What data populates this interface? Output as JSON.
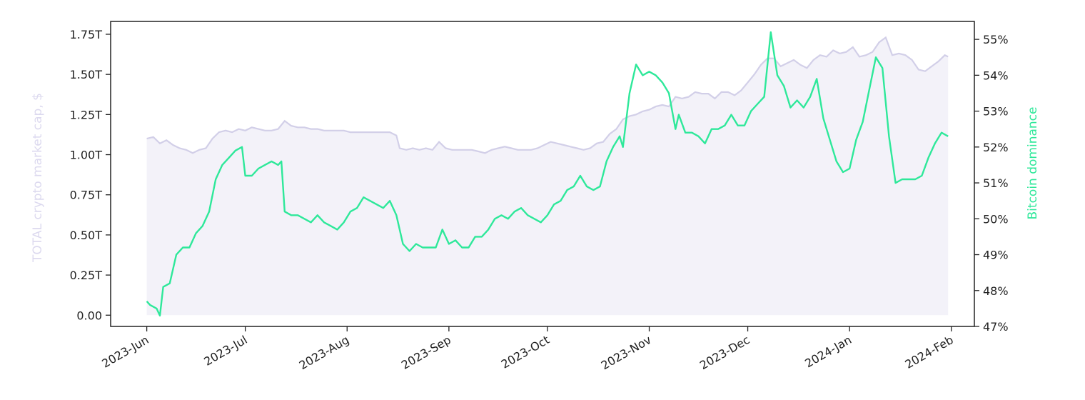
{
  "chart_data": {
    "type": "line",
    "x_axis": {
      "type": "date",
      "ticks": [
        {
          "label": "2023-Jun",
          "date": "2023-06-01"
        },
        {
          "label": "2023-Jul",
          "date": "2023-07-01"
        },
        {
          "label": "2023-Aug",
          "date": "2023-08-01"
        },
        {
          "label": "2023-Sep",
          "date": "2023-09-01"
        },
        {
          "label": "2023-Oct",
          "date": "2023-10-01"
        },
        {
          "label": "2023-Nov",
          "date": "2023-11-01"
        },
        {
          "label": "2023-Dec",
          "date": "2023-12-01"
        },
        {
          "label": "2024-Jan",
          "date": "2024-01-01"
        },
        {
          "label": "2024-Feb",
          "date": "2024-02-01"
        }
      ],
      "range": [
        "2023-05-21",
        "2024-02-08"
      ]
    },
    "y_left": {
      "label": "TOTAL crypto market cap, $",
      "color": "#dcd9ef",
      "range": [
        -0.07,
        1.83
      ],
      "ticks": [
        {
          "label": "0.00",
          "value": 0.0
        },
        {
          "label": "0.25T",
          "value": 0.25
        },
        {
          "label": "0.50T",
          "value": 0.5
        },
        {
          "label": "0.75T",
          "value": 0.75
        },
        {
          "label": "1.00T",
          "value": 1.0
        },
        {
          "label": "1.25T",
          "value": 1.25
        },
        {
          "label": "1.50T",
          "value": 1.5
        },
        {
          "label": "1.75T",
          "value": 1.75
        }
      ]
    },
    "y_right": {
      "label": "Bitcoin dominance",
      "color": "#2ee89a",
      "range": [
        47.0,
        55.5
      ],
      "ticks": [
        {
          "label": "47%",
          "value": 47
        },
        {
          "label": "48%",
          "value": 48
        },
        {
          "label": "49%",
          "value": 49
        },
        {
          "label": "50%",
          "value": 50
        },
        {
          "label": "51%",
          "value": 51
        },
        {
          "label": "52%",
          "value": 52
        },
        {
          "label": "53%",
          "value": 53
        },
        {
          "label": "54%",
          "value": 54
        },
        {
          "label": "55%",
          "value": 55
        }
      ]
    },
    "series": [
      {
        "axis": "left",
        "style": "area",
        "color": "#d2cfe8",
        "fill": "#f3f2f9",
        "points": [
          [
            "2023-06-01",
            1.1
          ],
          [
            "2023-06-03",
            1.11
          ],
          [
            "2023-06-05",
            1.07
          ],
          [
            "2023-06-07",
            1.09
          ],
          [
            "2023-06-09",
            1.06
          ],
          [
            "2023-06-11",
            1.04
          ],
          [
            "2023-06-13",
            1.03
          ],
          [
            "2023-06-15",
            1.01
          ],
          [
            "2023-06-17",
            1.03
          ],
          [
            "2023-06-19",
            1.04
          ],
          [
            "2023-06-21",
            1.1
          ],
          [
            "2023-06-23",
            1.14
          ],
          [
            "2023-06-25",
            1.15
          ],
          [
            "2023-06-27",
            1.14
          ],
          [
            "2023-06-29",
            1.16
          ],
          [
            "2023-07-01",
            1.15
          ],
          [
            "2023-07-03",
            1.17
          ],
          [
            "2023-07-05",
            1.16
          ],
          [
            "2023-07-07",
            1.15
          ],
          [
            "2023-07-09",
            1.15
          ],
          [
            "2023-07-11",
            1.16
          ],
          [
            "2023-07-13",
            1.21
          ],
          [
            "2023-07-15",
            1.18
          ],
          [
            "2023-07-17",
            1.17
          ],
          [
            "2023-07-19",
            1.17
          ],
          [
            "2023-07-21",
            1.16
          ],
          [
            "2023-07-23",
            1.16
          ],
          [
            "2023-07-25",
            1.15
          ],
          [
            "2023-07-27",
            1.15
          ],
          [
            "2023-07-29",
            1.15
          ],
          [
            "2023-07-31",
            1.15
          ],
          [
            "2023-08-02",
            1.14
          ],
          [
            "2023-08-04",
            1.14
          ],
          [
            "2023-08-06",
            1.14
          ],
          [
            "2023-08-08",
            1.14
          ],
          [
            "2023-08-10",
            1.14
          ],
          [
            "2023-08-12",
            1.14
          ],
          [
            "2023-08-14",
            1.14
          ],
          [
            "2023-08-16",
            1.12
          ],
          [
            "2023-08-17",
            1.04
          ],
          [
            "2023-08-19",
            1.03
          ],
          [
            "2023-08-21",
            1.04
          ],
          [
            "2023-08-23",
            1.03
          ],
          [
            "2023-08-25",
            1.04
          ],
          [
            "2023-08-27",
            1.03
          ],
          [
            "2023-08-29",
            1.08
          ],
          [
            "2023-08-31",
            1.04
          ],
          [
            "2023-09-02",
            1.03
          ],
          [
            "2023-09-04",
            1.03
          ],
          [
            "2023-09-06",
            1.03
          ],
          [
            "2023-09-08",
            1.03
          ],
          [
            "2023-09-10",
            1.02
          ],
          [
            "2023-09-12",
            1.01
          ],
          [
            "2023-09-14",
            1.03
          ],
          [
            "2023-09-16",
            1.04
          ],
          [
            "2023-09-18",
            1.05
          ],
          [
            "2023-09-20",
            1.04
          ],
          [
            "2023-09-22",
            1.03
          ],
          [
            "2023-09-24",
            1.03
          ],
          [
            "2023-09-26",
            1.03
          ],
          [
            "2023-09-28",
            1.04
          ],
          [
            "2023-09-30",
            1.06
          ],
          [
            "2023-10-02",
            1.08
          ],
          [
            "2023-10-04",
            1.07
          ],
          [
            "2023-10-06",
            1.06
          ],
          [
            "2023-10-08",
            1.05
          ],
          [
            "2023-10-10",
            1.04
          ],
          [
            "2023-10-12",
            1.03
          ],
          [
            "2023-10-14",
            1.04
          ],
          [
            "2023-10-16",
            1.07
          ],
          [
            "2023-10-18",
            1.08
          ],
          [
            "2023-10-20",
            1.13
          ],
          [
            "2023-10-22",
            1.16
          ],
          [
            "2023-10-24",
            1.22
          ],
          [
            "2023-10-26",
            1.24
          ],
          [
            "2023-10-28",
            1.25
          ],
          [
            "2023-10-30",
            1.27
          ],
          [
            "2023-11-01",
            1.28
          ],
          [
            "2023-11-03",
            1.3
          ],
          [
            "2023-11-05",
            1.31
          ],
          [
            "2023-11-07",
            1.3
          ],
          [
            "2023-11-09",
            1.36
          ],
          [
            "2023-11-11",
            1.35
          ],
          [
            "2023-11-13",
            1.36
          ],
          [
            "2023-11-15",
            1.39
          ],
          [
            "2023-11-17",
            1.38
          ],
          [
            "2023-11-19",
            1.38
          ],
          [
            "2023-11-21",
            1.35
          ],
          [
            "2023-11-23",
            1.39
          ],
          [
            "2023-11-25",
            1.39
          ],
          [
            "2023-11-27",
            1.37
          ],
          [
            "2023-11-29",
            1.4
          ],
          [
            "2023-12-01",
            1.45
          ],
          [
            "2023-12-03",
            1.5
          ],
          [
            "2023-12-05",
            1.56
          ],
          [
            "2023-12-07",
            1.6
          ],
          [
            "2023-12-09",
            1.6
          ],
          [
            "2023-12-11",
            1.55
          ],
          [
            "2023-12-13",
            1.57
          ],
          [
            "2023-12-15",
            1.59
          ],
          [
            "2023-12-17",
            1.56
          ],
          [
            "2023-12-19",
            1.54
          ],
          [
            "2023-12-21",
            1.59
          ],
          [
            "2023-12-23",
            1.62
          ],
          [
            "2023-12-25",
            1.61
          ],
          [
            "2023-12-27",
            1.65
          ],
          [
            "2023-12-29",
            1.63
          ],
          [
            "2023-12-31",
            1.64
          ],
          [
            "2024-01-02",
            1.67
          ],
          [
            "2024-01-04",
            1.61
          ],
          [
            "2024-01-06",
            1.62
          ],
          [
            "2024-01-08",
            1.64
          ],
          [
            "2024-01-10",
            1.7
          ],
          [
            "2024-01-12",
            1.73
          ],
          [
            "2024-01-14",
            1.62
          ],
          [
            "2024-01-16",
            1.63
          ],
          [
            "2024-01-18",
            1.62
          ],
          [
            "2024-01-20",
            1.59
          ],
          [
            "2024-01-22",
            1.53
          ],
          [
            "2024-01-24",
            1.52
          ],
          [
            "2024-01-26",
            1.55
          ],
          [
            "2024-01-28",
            1.58
          ],
          [
            "2024-01-30",
            1.62
          ],
          [
            "2024-01-31",
            1.61
          ]
        ]
      },
      {
        "axis": "right",
        "style": "line",
        "color": "#2ee89a",
        "points": [
          [
            "2023-06-01",
            47.7
          ],
          [
            "2023-06-02",
            47.6
          ],
          [
            "2023-06-04",
            47.5
          ],
          [
            "2023-06-05",
            47.3
          ],
          [
            "2023-06-06",
            48.1
          ],
          [
            "2023-06-08",
            48.2
          ],
          [
            "2023-06-10",
            49.0
          ],
          [
            "2023-06-12",
            49.2
          ],
          [
            "2023-06-14",
            49.2
          ],
          [
            "2023-06-16",
            49.6
          ],
          [
            "2023-06-18",
            49.8
          ],
          [
            "2023-06-20",
            50.2
          ],
          [
            "2023-06-22",
            51.1
          ],
          [
            "2023-06-24",
            51.5
          ],
          [
            "2023-06-26",
            51.7
          ],
          [
            "2023-06-28",
            51.9
          ],
          [
            "2023-06-30",
            52.0
          ],
          [
            "2023-07-01",
            51.2
          ],
          [
            "2023-07-03",
            51.2
          ],
          [
            "2023-07-05",
            51.4
          ],
          [
            "2023-07-07",
            51.5
          ],
          [
            "2023-07-09",
            51.6
          ],
          [
            "2023-07-11",
            51.5
          ],
          [
            "2023-07-12",
            51.6
          ],
          [
            "2023-07-13",
            50.2
          ],
          [
            "2023-07-15",
            50.1
          ],
          [
            "2023-07-17",
            50.1
          ],
          [
            "2023-07-19",
            50.0
          ],
          [
            "2023-07-21",
            49.9
          ],
          [
            "2023-07-23",
            50.1
          ],
          [
            "2023-07-25",
            49.9
          ],
          [
            "2023-07-27",
            49.8
          ],
          [
            "2023-07-29",
            49.7
          ],
          [
            "2023-07-31",
            49.9
          ],
          [
            "2023-08-02",
            50.2
          ],
          [
            "2023-08-04",
            50.3
          ],
          [
            "2023-08-06",
            50.6
          ],
          [
            "2023-08-08",
            50.5
          ],
          [
            "2023-08-10",
            50.4
          ],
          [
            "2023-08-12",
            50.3
          ],
          [
            "2023-08-14",
            50.5
          ],
          [
            "2023-08-16",
            50.1
          ],
          [
            "2023-08-18",
            49.3
          ],
          [
            "2023-08-20",
            49.1
          ],
          [
            "2023-08-22",
            49.3
          ],
          [
            "2023-08-24",
            49.2
          ],
          [
            "2023-08-26",
            49.2
          ],
          [
            "2023-08-28",
            49.2
          ],
          [
            "2023-08-30",
            49.7
          ],
          [
            "2023-09-01",
            49.3
          ],
          [
            "2023-09-03",
            49.4
          ],
          [
            "2023-09-05",
            49.2
          ],
          [
            "2023-09-07",
            49.2
          ],
          [
            "2023-09-09",
            49.5
          ],
          [
            "2023-09-11",
            49.5
          ],
          [
            "2023-09-13",
            49.7
          ],
          [
            "2023-09-15",
            50.0
          ],
          [
            "2023-09-17",
            50.1
          ],
          [
            "2023-09-19",
            50.0
          ],
          [
            "2023-09-21",
            50.2
          ],
          [
            "2023-09-23",
            50.3
          ],
          [
            "2023-09-25",
            50.1
          ],
          [
            "2023-09-27",
            50.0
          ],
          [
            "2023-09-29",
            49.9
          ],
          [
            "2023-10-01",
            50.1
          ],
          [
            "2023-10-03",
            50.4
          ],
          [
            "2023-10-05",
            50.5
          ],
          [
            "2023-10-07",
            50.8
          ],
          [
            "2023-10-09",
            50.9
          ],
          [
            "2023-10-11",
            51.2
          ],
          [
            "2023-10-13",
            50.9
          ],
          [
            "2023-10-15",
            50.8
          ],
          [
            "2023-10-17",
            50.9
          ],
          [
            "2023-10-19",
            51.6
          ],
          [
            "2023-10-21",
            52.0
          ],
          [
            "2023-10-23",
            52.3
          ],
          [
            "2023-10-24",
            52.0
          ],
          [
            "2023-10-26",
            53.5
          ],
          [
            "2023-10-28",
            54.3
          ],
          [
            "2023-10-30",
            54.0
          ],
          [
            "2023-11-01",
            54.1
          ],
          [
            "2023-11-03",
            54.0
          ],
          [
            "2023-11-05",
            53.8
          ],
          [
            "2023-11-07",
            53.5
          ],
          [
            "2023-11-09",
            52.5
          ],
          [
            "2023-11-10",
            52.9
          ],
          [
            "2023-11-12",
            52.4
          ],
          [
            "2023-11-14",
            52.4
          ],
          [
            "2023-11-16",
            52.3
          ],
          [
            "2023-11-18",
            52.1
          ],
          [
            "2023-11-20",
            52.5
          ],
          [
            "2023-11-22",
            52.5
          ],
          [
            "2023-11-24",
            52.6
          ],
          [
            "2023-11-26",
            52.9
          ],
          [
            "2023-11-28",
            52.6
          ],
          [
            "2023-11-30",
            52.6
          ],
          [
            "2023-12-02",
            53.0
          ],
          [
            "2023-12-04",
            53.2
          ],
          [
            "2023-12-06",
            53.4
          ],
          [
            "2023-12-08",
            55.2
          ],
          [
            "2023-12-10",
            54.0
          ],
          [
            "2023-12-12",
            53.7
          ],
          [
            "2023-12-14",
            53.1
          ],
          [
            "2023-12-16",
            53.3
          ],
          [
            "2023-12-18",
            53.1
          ],
          [
            "2023-12-20",
            53.4
          ],
          [
            "2023-12-22",
            53.9
          ],
          [
            "2023-12-24",
            52.8
          ],
          [
            "2023-12-26",
            52.2
          ],
          [
            "2023-12-28",
            51.6
          ],
          [
            "2023-12-30",
            51.3
          ],
          [
            "2024-01-01",
            51.4
          ],
          [
            "2024-01-03",
            52.2
          ],
          [
            "2024-01-05",
            52.7
          ],
          [
            "2024-01-07",
            53.6
          ],
          [
            "2024-01-09",
            54.5
          ],
          [
            "2024-01-11",
            54.2
          ],
          [
            "2024-01-13",
            52.3
          ],
          [
            "2024-01-15",
            51.0
          ],
          [
            "2024-01-17",
            51.1
          ],
          [
            "2024-01-19",
            51.1
          ],
          [
            "2024-01-21",
            51.1
          ],
          [
            "2024-01-23",
            51.2
          ],
          [
            "2024-01-25",
            51.7
          ],
          [
            "2024-01-27",
            52.1
          ],
          [
            "2024-01-29",
            52.4
          ],
          [
            "2024-01-31",
            52.3
          ]
        ]
      }
    ]
  }
}
